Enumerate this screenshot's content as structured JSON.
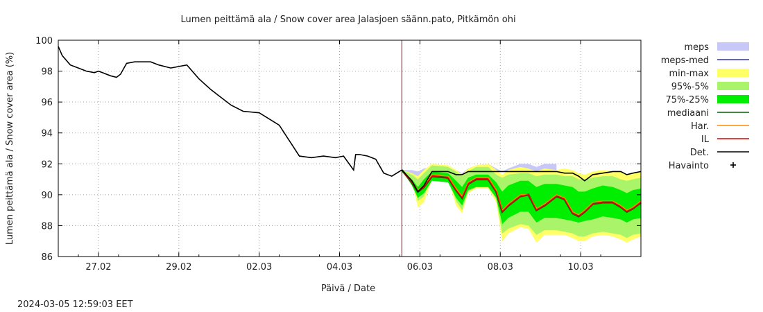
{
  "chart_data": {
    "type": "area",
    "title": "Lumen peittämä ala / Snow cover area Jalasjoen säänn.pato, Pitkämön ohi",
    "xlabel": "Päivä / Date",
    "ylabel": "Lumen peittämä ala / Snow cover area (%)",
    "timestamp": "2024-03-05 12:59:03 EET",
    "ylim": [
      86,
      100
    ],
    "yticks": [
      "86",
      "88",
      "90",
      "92",
      "94",
      "96",
      "98",
      "100"
    ],
    "xlim_days": [
      0,
      14.5
    ],
    "xticks": [
      {
        "label": "27.02",
        "day": 1
      },
      {
        "label": "29.02",
        "day": 3
      },
      {
        "label": "02.03",
        "day": 5
      },
      {
        "label": "04.03",
        "day": 7
      },
      {
        "label": "06.03",
        "day": 9
      },
      {
        "label": "08.03",
        "day": 11
      },
      {
        "label": "10.03",
        "day": 13
      }
    ],
    "grid": true,
    "legend_position": "right",
    "forecast_start_day": 8.55,
    "legend": [
      {
        "key": "meps",
        "label": "meps",
        "type": "band",
        "color": "#c8c8f8"
      },
      {
        "key": "meps_med",
        "label": "meps-med",
        "type": "line",
        "color": "#3030c0"
      },
      {
        "key": "minmax",
        "label": "min-max",
        "type": "band",
        "color": "#ffff66"
      },
      {
        "key": "p95_5",
        "label": "95%-5%",
        "type": "band",
        "color": "#aaf46a"
      },
      {
        "key": "p75_25",
        "label": "75%-25%",
        "type": "band",
        "color": "#00ee00"
      },
      {
        "key": "mediaani",
        "label": "mediaani",
        "type": "line",
        "color": "#006400"
      },
      {
        "key": "har",
        "label": "Har.",
        "type": "line",
        "color": "#ff8c00"
      },
      {
        "key": "il",
        "label": "IL",
        "type": "line",
        "color": "#e00000"
      },
      {
        "key": "det",
        "label": "Det.",
        "type": "line",
        "color": "#000000"
      },
      {
        "key": "havainto",
        "label": "Havainto",
        "type": "marker",
        "color": "#000000"
      }
    ],
    "history": {
      "x": [
        0,
        0.1,
        0.3,
        0.5,
        0.7,
        0.9,
        1.0,
        1.1,
        1.3,
        1.45,
        1.55,
        1.7,
        1.9,
        2.3,
        2.5,
        2.8,
        3.0,
        3.2,
        3.5,
        3.8,
        4.0,
        4.3,
        4.6,
        5.0,
        5.5,
        6.0,
        6.3,
        6.6,
        6.9,
        7.1,
        7.35,
        7.4,
        7.5,
        7.7,
        7.9,
        8.1,
        8.3,
        8.55
      ],
      "y": [
        99.6,
        99.0,
        98.4,
        98.2,
        98.0,
        97.9,
        98.0,
        97.9,
        97.7,
        97.6,
        97.8,
        98.5,
        98.6,
        98.6,
        98.4,
        98.2,
        98.3,
        98.4,
        97.5,
        96.8,
        96.4,
        95.8,
        95.4,
        95.3,
        94.5,
        92.5,
        92.4,
        92.5,
        92.4,
        92.5,
        91.6,
        92.6,
        92.6,
        92.5,
        92.3,
        91.4,
        91.2,
        91.6
      ]
    },
    "forecast": {
      "x": [
        8.55,
        8.8,
        8.95,
        9.1,
        9.3,
        9.7,
        9.9,
        10.05,
        10.2,
        10.4,
        10.7,
        10.9,
        11.05,
        11.2,
        11.5,
        11.7,
        11.9,
        12.1,
        12.4,
        12.6,
        12.8,
        12.95,
        13.1,
        13.3,
        13.55,
        13.8,
        14.0,
        14.15,
        14.3,
        14.5
      ],
      "meps_hi": [
        91.6,
        91.6,
        91.5,
        91.7,
        91.8,
        91.9,
        91.6,
        91.4,
        91.7,
        91.9,
        92.0,
        91.7,
        91.5,
        91.7,
        92.0,
        92.0,
        91.8,
        92.0,
        92.0,
        null,
        null,
        null,
        null,
        null,
        null,
        null,
        null,
        null,
        null,
        null
      ],
      "minmax_hi": [
        91.6,
        91.4,
        91.2,
        91.6,
        92.0,
        91.9,
        91.6,
        91.3,
        91.7,
        91.9,
        92.0,
        91.6,
        91.3,
        91.6,
        91.8,
        91.7,
        91.5,
        91.7,
        91.6,
        91.7,
        91.6,
        91.4,
        91.3,
        91.5,
        91.6,
        91.5,
        91.5,
        91.3,
        91.4,
        91.5
      ],
      "minmax_lo": [
        91.6,
        90.8,
        89.2,
        89.5,
        91.0,
        91.0,
        89.3,
        88.8,
        90.1,
        90.4,
        90.4,
        89.5,
        87.0,
        87.5,
        87.9,
        87.8,
        86.9,
        87.4,
        87.4,
        87.4,
        87.2,
        87.0,
        87.0,
        87.3,
        87.4,
        87.3,
        87.1,
        86.9,
        87.1,
        87.3
      ],
      "p95_hi": [
        91.6,
        91.3,
        91.0,
        91.4,
        91.9,
        91.8,
        91.5,
        91.2,
        91.5,
        91.8,
        91.8,
        91.3,
        91.1,
        91.3,
        91.4,
        91.4,
        91.2,
        91.3,
        91.3,
        91.2,
        91.2,
        91.0,
        91.0,
        91.1,
        91.2,
        91.2,
        91.0,
        90.9,
        91.0,
        91.1
      ],
      "p95_lo": [
        91.6,
        90.9,
        89.6,
        89.9,
        91.1,
        91.1,
        89.6,
        89.0,
        90.2,
        90.5,
        90.5,
        89.7,
        87.5,
        87.8,
        88.1,
        88.0,
        87.4,
        87.7,
        87.7,
        87.6,
        87.5,
        87.3,
        87.3,
        87.5,
        87.6,
        87.5,
        87.4,
        87.2,
        87.4,
        87.5
      ],
      "p75_hi": [
        91.6,
        91.0,
        90.5,
        91.0,
        91.5,
        91.4,
        90.9,
        90.5,
        91.1,
        91.3,
        91.3,
        90.8,
        90.2,
        90.6,
        90.9,
        90.9,
        90.5,
        90.7,
        90.7,
        90.6,
        90.5,
        90.2,
        90.2,
        90.4,
        90.6,
        90.5,
        90.3,
        90.1,
        90.3,
        90.4
      ],
      "p75_lo": [
        91.6,
        90.6,
        89.8,
        90.1,
        90.9,
        90.8,
        89.8,
        89.3,
        90.3,
        90.5,
        90.5,
        89.8,
        88.1,
        88.5,
        88.9,
        88.9,
        88.2,
        88.5,
        88.5,
        88.4,
        88.3,
        88.2,
        88.3,
        88.4,
        88.6,
        88.5,
        88.4,
        88.2,
        88.4,
        88.5
      ],
      "mediaani": [
        91.6,
        90.8,
        90.2,
        90.5,
        91.2,
        91.1,
        90.3,
        89.8,
        90.7,
        91.0,
        91.0,
        90.2,
        88.9,
        89.3,
        89.9,
        90.0,
        89.0,
        89.3,
        89.9,
        89.7,
        88.8,
        88.6,
        88.9,
        89.4,
        89.5,
        89.5,
        89.2,
        88.9,
        89.1,
        89.5
      ],
      "har": [
        91.6,
        90.8,
        90.3,
        90.6,
        91.3,
        91.2,
        90.4,
        89.9,
        90.8,
        91.1,
        91.1,
        90.3,
        89.0,
        89.4,
        90.0,
        90.0,
        89.1,
        89.4,
        90.0,
        89.8,
        88.9,
        88.7,
        89.0,
        89.5,
        89.6,
        89.6,
        89.3,
        89.0,
        89.2,
        89.6
      ],
      "il": [
        91.6,
        90.8,
        90.2,
        90.5,
        91.2,
        91.1,
        90.3,
        89.8,
        90.7,
        91.0,
        91.0,
        90.2,
        88.9,
        89.3,
        89.9,
        90.0,
        89.0,
        89.3,
        89.9,
        89.7,
        88.8,
        88.6,
        88.9,
        89.4,
        89.5,
        89.5,
        89.2,
        88.9,
        89.1,
        89.5
      ],
      "det": [
        91.6,
        90.9,
        90.2,
        90.6,
        91.5,
        91.5,
        91.3,
        91.3,
        91.5,
        91.5,
        91.5,
        91.5,
        91.5,
        91.5,
        91.5,
        91.5,
        91.5,
        91.5,
        91.5,
        91.4,
        91.4,
        91.2,
        90.9,
        91.3,
        91.4,
        91.5,
        91.5,
        91.3,
        91.4,
        91.5
      ]
    }
  }
}
